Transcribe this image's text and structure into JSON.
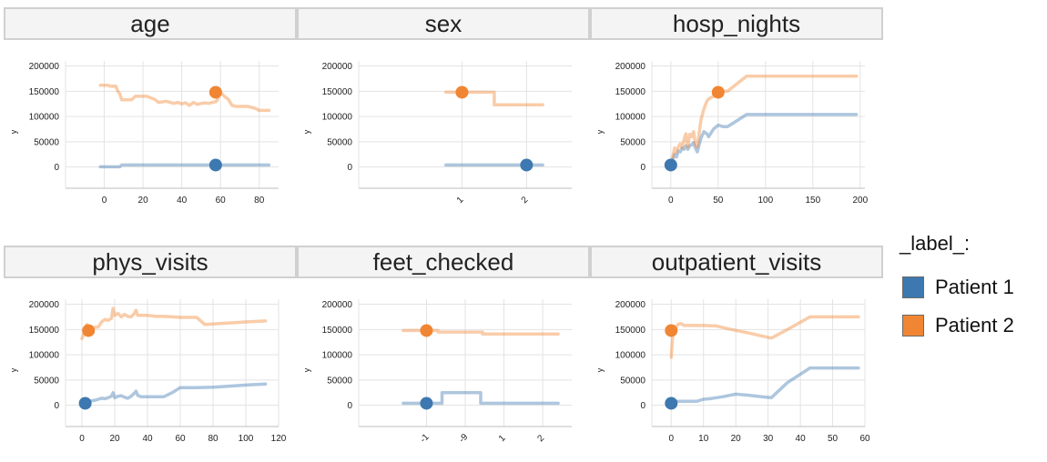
{
  "chart_data": {
    "type": "line",
    "ylabel": "y",
    "legend": {
      "title": "_label_:",
      "placement": "right",
      "entries": [
        "Patient 1",
        "Patient 2"
      ]
    },
    "colors": {
      "Patient 1": "#3d78b0",
      "Patient 2": "#f08633"
    },
    "grid": true,
    "panels": [
      {
        "title": "age",
        "xticks": [
          "0",
          "20",
          "40",
          "60",
          "80"
        ],
        "xtick_values": [
          0,
          20,
          40,
          60,
          80
        ],
        "xlim": [
          -20,
          90
        ],
        "yticks": [
          0,
          50000,
          100000,
          150000,
          200000
        ],
        "ylim": [
          -42000,
          210000
        ],
        "xtick_rotation": 0,
        "series": [
          {
            "name": "Patient 1",
            "x": [
              -2,
              8,
              9,
              85
            ],
            "y": [
              500,
              500,
              4000,
              4000
            ]
          },
          {
            "name": "Patient 2",
            "x": [
              -2,
              2,
              3,
              6,
              7,
              8,
              9,
              12,
              14,
              16,
              17,
              22,
              24,
              26,
              28,
              30,
              32,
              34,
              36,
              38,
              40,
              42,
              44,
              46,
              48,
              50,
              52,
              54,
              56,
              58,
              60,
              62,
              64,
              66,
              68,
              70,
              72,
              74,
              76,
              78,
              80,
              82,
              85
            ],
            "y": [
              162000,
              162000,
              160000,
              160000,
              150000,
              145000,
              133000,
              133000,
              133000,
              140000,
              140000,
              140000,
              137000,
              134000,
              128000,
              129000,
              130000,
              128000,
              126000,
              128000,
              125000,
              127000,
              122000,
              128000,
              124000,
              126000,
              127000,
              126000,
              128000,
              130000,
              148000,
              140000,
              134000,
              122000,
              120000,
              120000,
              120000,
              120000,
              118000,
              116000,
              112000,
              112000,
              112000
            ]
          }
        ],
        "points": [
          {
            "name": "Patient 1",
            "x": 57.5,
            "y": 4000
          },
          {
            "name": "Patient 2",
            "x": 57.5,
            "y": 148000
          }
        ]
      },
      {
        "title": "sex",
        "xticks": [
          "1",
          "2"
        ],
        "xtick_values": [
          1,
          2
        ],
        "xlim": [
          -0.6,
          2.7
        ],
        "yticks": [
          0,
          50000,
          100000,
          150000,
          200000
        ],
        "ylim": [
          -42000,
          210000
        ],
        "xtick_rotation": -45,
        "series": [
          {
            "name": "Patient 1",
            "x": [
              0.75,
              2.25
            ],
            "y": [
              4000,
              4000
            ]
          },
          {
            "name": "Patient 2",
            "x": [
              0.75,
              1.5,
              1.5,
              2.25
            ],
            "y": [
              148000,
              148000,
              123000,
              123000
            ]
          }
        ],
        "points": [
          {
            "name": "Patient 1",
            "x": 2,
            "y": 4000
          },
          {
            "name": "Patient 2",
            "x": 1,
            "y": 148000
          }
        ]
      },
      {
        "title": "hosp_nights",
        "xticks": [
          "0",
          "50",
          "100",
          "150",
          "200"
        ],
        "xtick_values": [
          0,
          50,
          100,
          150,
          200
        ],
        "xlim": [
          -20,
          205
        ],
        "yticks": [
          0,
          50000,
          100000,
          150000,
          200000
        ],
        "ylim": [
          -42000,
          210000
        ],
        "xtick_rotation": 0,
        "series": [
          {
            "name": "Patient 1",
            "x": [
              0,
              2,
              4,
              6,
              8,
              10,
              12,
              14,
              16,
              18,
              20,
              22,
              24,
              26,
              28,
              30,
              32,
              35,
              38,
              40,
              45,
              50,
              55,
              60,
              70,
              80,
              90,
              100,
              120,
              150,
              196
            ],
            "y": [
              4000,
              15000,
              25000,
              20000,
              32000,
              30000,
              38000,
              35000,
              42000,
              35000,
              42000,
              44000,
              48000,
              38000,
              30000,
              45000,
              58000,
              70000,
              66000,
              60000,
              75000,
              83000,
              80000,
              80000,
              92000,
              104000,
              104000,
              104000,
              104000,
              104000,
              104000
            ]
          },
          {
            "name": "Patient 2",
            "x": [
              0,
              2,
              4,
              6,
              8,
              10,
              12,
              14,
              16,
              18,
              20,
              22,
              24,
              26,
              28,
              30,
              32,
              35,
              38,
              40,
              45,
              50,
              55,
              60,
              70,
              80,
              90,
              100,
              120,
              150,
              196
            ],
            "y": [
              4000,
              20000,
              38000,
              30000,
              40000,
              46000,
              38000,
              55000,
              66000,
              40000,
              65000,
              60000,
              70000,
              45000,
              40000,
              68000,
              95000,
              115000,
              130000,
              135000,
              140000,
              148000,
              150000,
              150000,
              165000,
              180000,
              180000,
              180000,
              180000,
              180000,
              180000
            ]
          }
        ],
        "points": [
          {
            "name": "Patient 1",
            "x": 0,
            "y": 4000
          },
          {
            "name": "Patient 2",
            "x": 50,
            "y": 148000
          }
        ]
      },
      {
        "title": "phys_visits",
        "xticks": [
          "0",
          "20",
          "40",
          "60",
          "80",
          "100",
          "120"
        ],
        "xtick_values": [
          0,
          20,
          40,
          60,
          80,
          100,
          120
        ],
        "xlim": [
          -10,
          120
        ],
        "yticks": [
          0,
          50000,
          100000,
          150000,
          200000
        ],
        "ylim": [
          -42000,
          210000
        ],
        "xtick_rotation": 0,
        "series": [
          {
            "name": "Patient 1",
            "x": [
              0,
              2,
              4,
              6,
              8,
              10,
              12,
              14,
              16,
              18,
              19,
              20,
              22,
              24,
              26,
              28,
              30,
              32,
              33,
              34,
              36,
              40,
              45,
              50,
              55,
              60,
              70,
              80,
              90,
              100,
              112
            ],
            "y": [
              3000,
              5000,
              7000,
              9000,
              10000,
              12000,
              14000,
              13000,
              15000,
              18000,
              25000,
              15000,
              18000,
              19000,
              16000,
              14000,
              18000,
              24000,
              28000,
              20000,
              17000,
              17000,
              17000,
              17000,
              25000,
              35000,
              35000,
              36000,
              38000,
              40000,
              42000
            ]
          },
          {
            "name": "Patient 2",
            "x": [
              0,
              1,
              2,
              3,
              4,
              5,
              6,
              8,
              10,
              12,
              14,
              16,
              18,
              19,
              20,
              22,
              24,
              26,
              28,
              30,
              32,
              33,
              34,
              36,
              40,
              45,
              50,
              55,
              60,
              70,
              75,
              80,
              90,
              100,
              112
            ],
            "y": [
              132000,
              140000,
              150000,
              160000,
              148000,
              145000,
              150000,
              155000,
              155000,
              165000,
              170000,
              168000,
              172000,
              192000,
              178000,
              182000,
              175000,
              180000,
              176000,
              175000,
              182000,
              188000,
              178000,
              178000,
              178000,
              176000,
              176000,
              175000,
              174000,
              174000,
              160000,
              161000,
              163000,
              165000,
              167000
            ]
          }
        ],
        "points": [
          {
            "name": "Patient 1",
            "x": 2,
            "y": 4000
          },
          {
            "name": "Patient 2",
            "x": 4,
            "y": 148000
          }
        ]
      },
      {
        "title": "feet_checked",
        "xticks": [
          "-1",
          "-9",
          "1",
          "2"
        ],
        "xtick_values": [
          -1,
          0,
          1,
          2
        ],
        "xlim": [
          -2.75,
          2.75
        ],
        "yticks": [
          0,
          50000,
          100000,
          150000,
          200000
        ],
        "ylim": [
          -42000,
          210000
        ],
        "xtick_rotation": -45,
        "series": [
          {
            "name": "Patient 1",
            "x": [
              -1.6,
              -0.6,
              -0.6,
              0.4,
              0.4,
              2.4
            ],
            "y": [
              4000,
              4000,
              25000,
              25000,
              4000,
              4000
            ]
          },
          {
            "name": "Patient 2",
            "x": [
              -1.6,
              -0.7,
              -0.7,
              0.45,
              0.45,
              2.4
            ],
            "y": [
              148000,
              148000,
              145000,
              145000,
              141000,
              141000
            ]
          }
        ],
        "points": [
          {
            "name": "Patient 1",
            "x": -1,
            "y": 4000
          },
          {
            "name": "Patient 2",
            "x": -1,
            "y": 148000
          }
        ]
      },
      {
        "title": "outpatient_visits",
        "xticks": [
          "0",
          "10",
          "20",
          "30",
          "40",
          "50",
          "60"
        ],
        "xtick_values": [
          0,
          10,
          20,
          30,
          40,
          50,
          60
        ],
        "xlim": [
          -6,
          60
        ],
        "yticks": [
          0,
          50000,
          100000,
          150000,
          200000
        ],
        "ylim": [
          -42000,
          210000
        ],
        "xtick_rotation": 0,
        "series": [
          {
            "name": "Patient 1",
            "x": [
              0,
              4,
              8,
              10,
              12,
              14,
              16,
              20,
              24,
              28,
              31,
              36,
              43,
              50,
              58
            ],
            "y": [
              8000,
              8000,
              8000,
              12000,
              13000,
              15000,
              17000,
              22000,
              20000,
              17000,
              15000,
              45000,
              74000,
              74000,
              74000
            ]
          },
          {
            "name": "Patient 2",
            "x": [
              0,
              0.5,
              1,
              2,
              3,
              4,
              6,
              10,
              14,
              18,
              24,
              31,
              36,
              43,
              50,
              58
            ],
            "y": [
              95000,
              140000,
              148000,
              160000,
              162000,
              158000,
              158000,
              158000,
              157000,
              151000,
              143000,
              133000,
              150000,
              175000,
              175000,
              175000
            ]
          }
        ],
        "points": [
          {
            "name": "Patient 1",
            "x": 0,
            "y": 4000
          },
          {
            "name": "Patient 2",
            "x": 0,
            "y": 148000
          }
        ]
      }
    ]
  }
}
